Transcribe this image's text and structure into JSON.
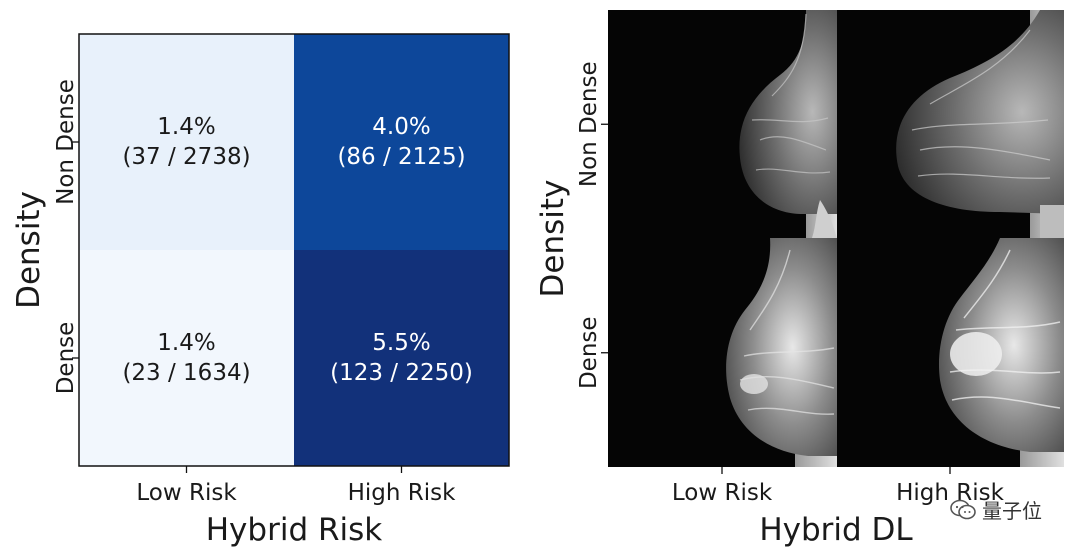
{
  "chart_data": [
    {
      "type": "heatmap",
      "xlabel": "Hybrid Risk",
      "ylabel": "Density",
      "x_categories": [
        "Low Risk",
        "High Risk"
      ],
      "y_categories": [
        "Non Dense",
        "Dense"
      ],
      "cells": [
        {
          "row": 0,
          "col": 0,
          "value": 1.4,
          "label": "1.4%",
          "sub": "(37 / 2738)",
          "color": "#e8f1fb"
        },
        {
          "row": 0,
          "col": 1,
          "value": 4.0,
          "label": "4.0%",
          "sub": "(86 / 2125)",
          "color": "#0d479a"
        },
        {
          "row": 1,
          "col": 0,
          "value": 1.4,
          "label": "1.4%",
          "sub": "(23 / 1634)",
          "color": "#f2f7fd"
        },
        {
          "row": 1,
          "col": 1,
          "value": 5.5,
          "label": "5.5%",
          "sub": "(123 / 2250)",
          "color": "#12317a"
        }
      ],
      "grid": false
    },
    {
      "type": "image-grid",
      "xlabel": "Hybrid DL",
      "ylabel": "Density",
      "x_categories": [
        "Low Risk",
        "High Risk"
      ],
      "y_categories": [
        "Non Dense",
        "Dense"
      ]
    }
  ],
  "watermark": {
    "text": "量子位",
    "icon": "wechat-icon"
  }
}
